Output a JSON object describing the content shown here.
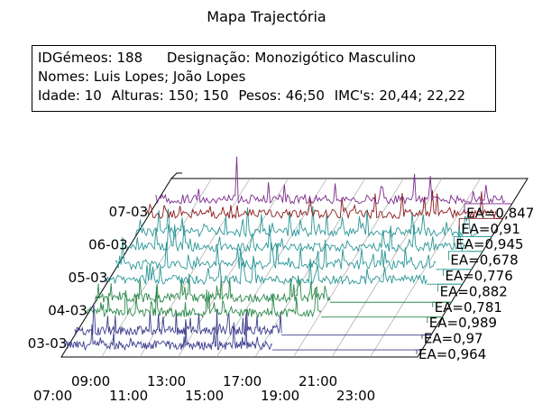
{
  "title": "Mapa Trajectória",
  "info": {
    "id_label": "IDGémeos:",
    "id_value": "188",
    "designation_label": "Designação:",
    "designation_value": "Monozigótico Masculino",
    "names_label": "Nomes:",
    "names_value": "Luis Lopes; João Lopes",
    "age_label": "Idade:",
    "age_value": "10",
    "heights_label": "Alturas:",
    "heights_value": "150; 150",
    "weights_label": "Pesos:",
    "weights_value": "46;50",
    "bmi_label": "IMC's:",
    "bmi_value": "20,44; 22,22"
  },
  "chart_data": {
    "type": "line",
    "style": "3d-stacked-activity-map",
    "x_ticks_front": [
      "07:00",
      "11:00",
      "15:00",
      "19:00",
      "23:00"
    ],
    "x_ticks_back": [
      "09:00",
      "13:00",
      "17:00",
      "21:00"
    ],
    "x_range": [
      "07:00",
      "23:30"
    ],
    "days": [
      "03-03",
      "04-03",
      "05-03",
      "06-03",
      "07-03"
    ],
    "series": [
      {
        "day": "03-03",
        "subject": 1,
        "color": "#3d3d8f",
        "ea": "EA=0,964",
        "end": 0.58
      },
      {
        "day": "03-03",
        "subject": 2,
        "color": "#3d3d8f",
        "ea": "EA=0,97",
        "end": 0.58
      },
      {
        "day": "04-03",
        "subject": 1,
        "color": "#2f8a4e",
        "ea": "EA=0,989",
        "end": 0.66
      },
      {
        "day": "04-03",
        "subject": 2,
        "color": "#2f8a4e",
        "ea": "EA=0,781",
        "end": 0.66
      },
      {
        "day": "05-03",
        "subject": 1,
        "color": "#2a9696",
        "ea": "EA=0,882",
        "end": 0.9
      },
      {
        "day": "05-03",
        "subject": 2,
        "color": "#2a9696",
        "ea": "EA=0,776",
        "end": 0.9
      },
      {
        "day": "06-03",
        "subject": 1,
        "color": "#2a9696",
        "ea": "EA=0,678",
        "end": 0.96
      },
      {
        "day": "06-03",
        "subject": 2,
        "color": "#2a9696",
        "ea": "EA=0,945",
        "end": 0.96
      },
      {
        "day": "07-03",
        "subject": 1,
        "color": "#8a1a1a",
        "ea": "EA=0,91",
        "end": 0.98
      },
      {
        "day": "07-03",
        "subject": 2,
        "color": "#7a2a8a",
        "ea": "EA=0,847",
        "end": 0.98
      }
    ]
  }
}
